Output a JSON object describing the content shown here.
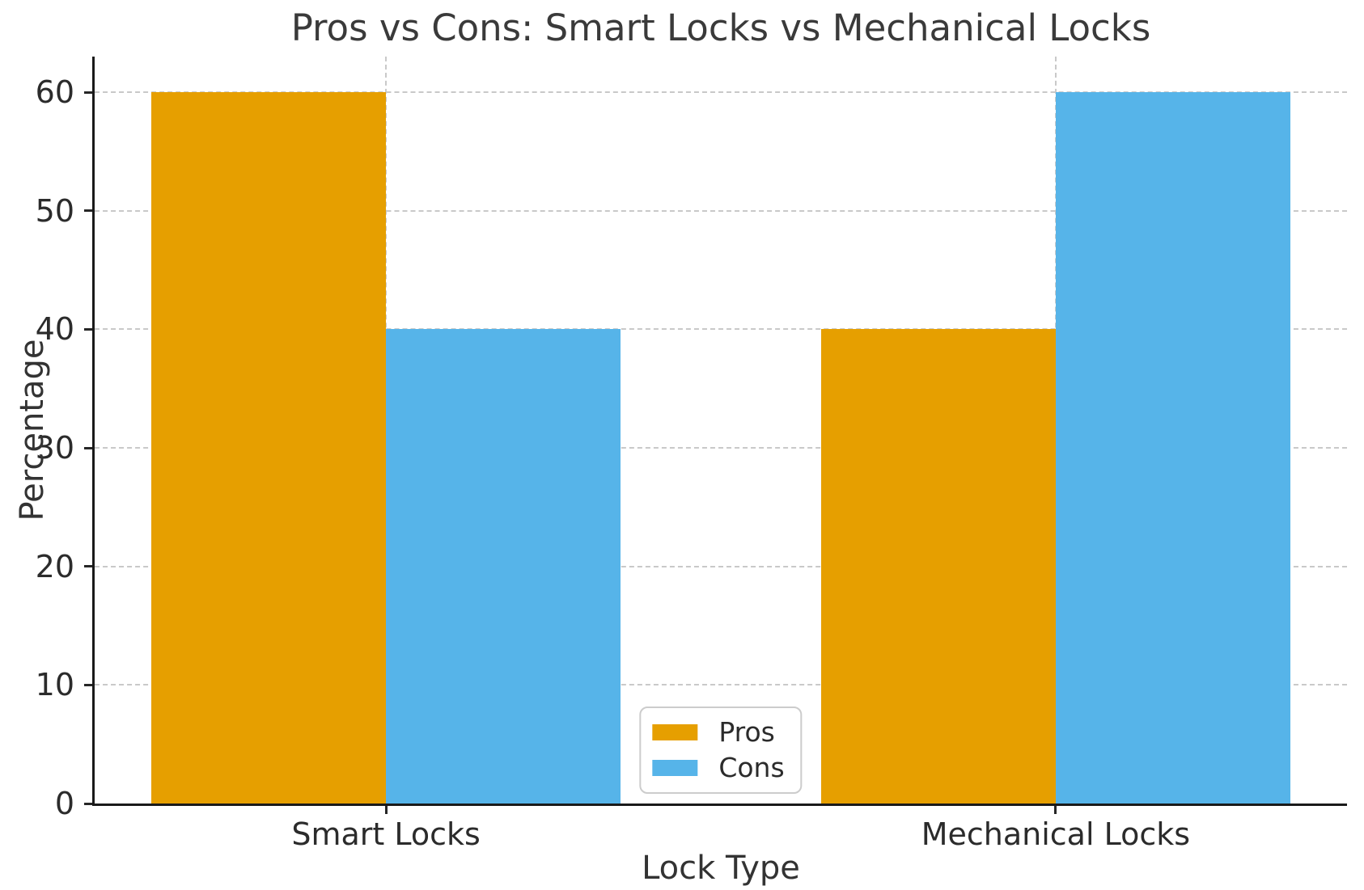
{
  "chart_data": {
    "type": "bar",
    "title": "Pros vs Cons: Smart Locks vs Mechanical Locks",
    "xlabel": "Lock Type",
    "ylabel": "Percentage",
    "categories": [
      "Smart Locks",
      "Mechanical Locks"
    ],
    "series": [
      {
        "name": "Pros",
        "color": "#E69F00",
        "values": [
          60,
          40
        ]
      },
      {
        "name": "Cons",
        "color": "#56B4E9",
        "values": [
          40,
          60
        ]
      }
    ],
    "yticks": [
      0,
      10,
      20,
      30,
      40,
      50,
      60
    ],
    "ylim": [
      0,
      63
    ],
    "xlim": [
      -0.435,
      1.435
    ],
    "bar_width": 0.35,
    "grid": "dashed, horizontal at y-ticks and vertical at category ticks, drawn behind bars",
    "legend_position": "lower center",
    "colors": {
      "pros": "#E69F00",
      "cons": "#56B4E9",
      "grid": "#c9c9c9",
      "spine": "#1a1a1a",
      "text": "#333333"
    }
  }
}
